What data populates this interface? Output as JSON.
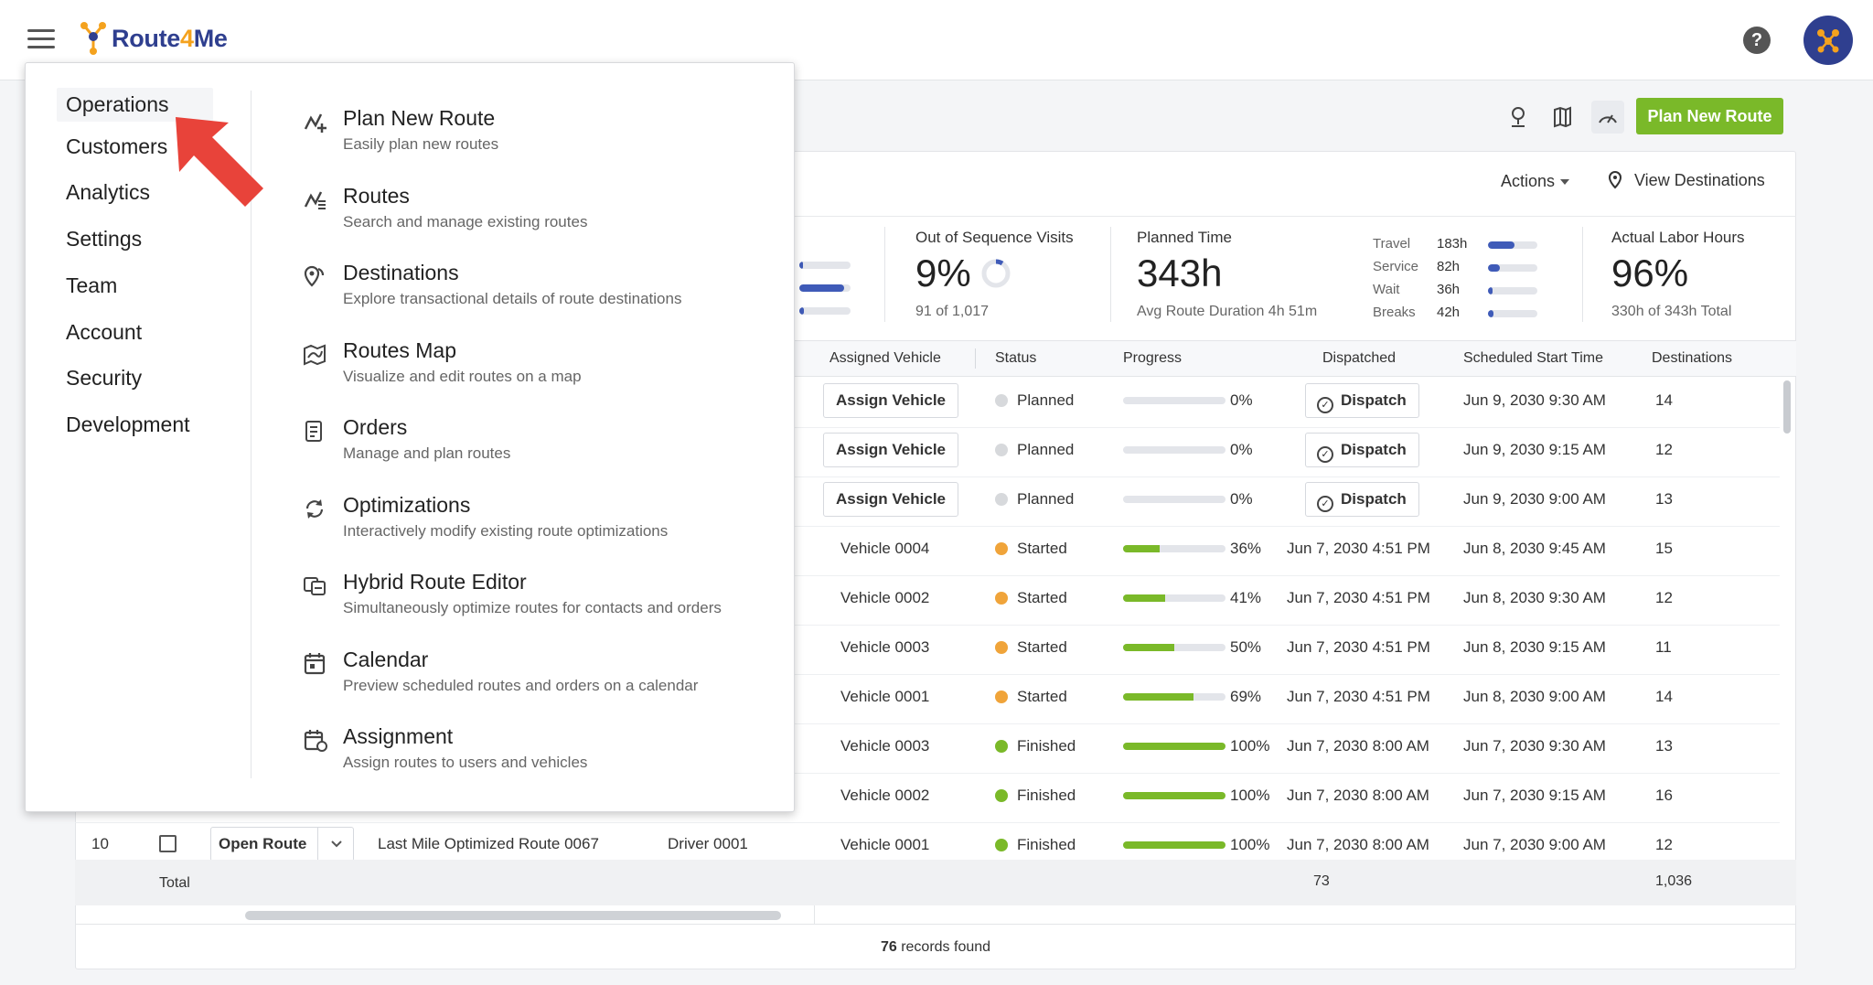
{
  "header": {
    "logo_text_a": "Route",
    "logo_text_b": "4",
    "logo_text_c": "Me",
    "help_label": "?"
  },
  "toolbar": {
    "plan_new_route": "Plan New Route",
    "actions": "Actions",
    "view_destinations": "View Destinations"
  },
  "stats": {
    "out_of_sequence": {
      "label": "Out of Sequence Visits",
      "value": "9%",
      "sub": "91 of 1,017",
      "ring_fraction": 0.09
    },
    "planned_time": {
      "label": "Planned Time",
      "value": "343h",
      "sub": "Avg Route Duration 4h 51m"
    },
    "breakdown": [
      {
        "label": "Travel",
        "value": "183h",
        "fraction": 0.53
      },
      {
        "label": "Service",
        "value": "82h",
        "fraction": 0.24
      },
      {
        "label": "Wait",
        "value": "36h",
        "fraction": 0.1
      },
      {
        "label": "Breaks",
        "value": "42h",
        "fraction": 0.12
      }
    ],
    "left_partial_fractions": [
      0.08,
      0.88,
      0.09
    ],
    "labor": {
      "label": "Actual Labor Hours",
      "value": "96%",
      "sub": "330h of 343h Total"
    }
  },
  "table": {
    "headers": {
      "vehicle": "Assigned Vehicle",
      "status": "Status",
      "progress": "Progress",
      "dispatched": "Dispatched",
      "start": "Scheduled Start Time",
      "destinations": "Destinations"
    },
    "rows": [
      {
        "vehicle": "Assign Vehicle",
        "vehicle_button": true,
        "status": "Planned",
        "status_color": "#d7d9dc",
        "progress": 0,
        "progress_label": "0%",
        "dispatched": "Dispatch",
        "dispatch_button": true,
        "start": "Jun 9, 2030 9:30 AM",
        "dest": "14"
      },
      {
        "vehicle": "Assign Vehicle",
        "vehicle_button": true,
        "status": "Planned",
        "status_color": "#d7d9dc",
        "progress": 0,
        "progress_label": "0%",
        "dispatched": "Dispatch",
        "dispatch_button": true,
        "start": "Jun 9, 2030 9:15 AM",
        "dest": "12"
      },
      {
        "vehicle": "Assign Vehicle",
        "vehicle_button": true,
        "status": "Planned",
        "status_color": "#d7d9dc",
        "progress": 0,
        "progress_label": "0%",
        "dispatched": "Dispatch",
        "dispatch_button": true,
        "start": "Jun 9, 2030 9:00 AM",
        "dest": "13"
      },
      {
        "vehicle": "Vehicle 0004",
        "status": "Started",
        "status_color": "#f0a43a",
        "progress": 36,
        "progress_label": "36%",
        "dispatched": "Jun 7, 2030 4:51 PM",
        "start": "Jun 8, 2030 9:45 AM",
        "dest": "15"
      },
      {
        "vehicle": "Vehicle 0002",
        "status": "Started",
        "status_color": "#f0a43a",
        "progress": 41,
        "progress_label": "41%",
        "dispatched": "Jun 7, 2030 4:51 PM",
        "start": "Jun 8, 2030 9:30 AM",
        "dest": "12"
      },
      {
        "vehicle": "Vehicle 0003",
        "status": "Started",
        "status_color": "#f0a43a",
        "progress": 50,
        "progress_label": "50%",
        "dispatched": "Jun 7, 2030 4:51 PM",
        "start": "Jun 8, 2030 9:15 AM",
        "dest": "11"
      },
      {
        "vehicle": "Vehicle 0001",
        "status": "Started",
        "status_color": "#f0a43a",
        "progress": 69,
        "progress_label": "69%",
        "dispatched": "Jun 7, 2030 4:51 PM",
        "start": "Jun 8, 2030 9:00 AM",
        "dest": "14"
      },
      {
        "vehicle": "Vehicle 0003",
        "status": "Finished",
        "status_color": "#7ab929",
        "progress": 100,
        "progress_label": "100%",
        "dispatched": "Jun 7, 2030 8:00 AM",
        "start": "Jun 7, 2030 9:30 AM",
        "dest": "13"
      },
      {
        "vehicle": "Vehicle 0002",
        "status": "Finished",
        "status_color": "#7ab929",
        "progress": 100,
        "progress_label": "100%",
        "dispatched": "Jun 7, 2030 8:00 AM",
        "start": "Jun 7, 2030 9:15 AM",
        "dest": "16"
      },
      {
        "vehicle": "Vehicle 0001",
        "status": "Finished",
        "status_color": "#7ab929",
        "progress": 100,
        "progress_label": "100%",
        "dispatched": "Jun 7, 2030 8:00 AM",
        "start": "Jun 7, 2030 9:00 AM",
        "dest": "12"
      }
    ],
    "last_row": {
      "num": "10",
      "open_route": "Open Route",
      "route_name": "Last Mile Optimized Route 0067",
      "driver": "Driver 0001"
    },
    "total": {
      "label": "Total",
      "dispatched_total": "73",
      "dest_total": "1,036"
    },
    "records_count": "76",
    "records_suffix": " records found"
  },
  "menu": {
    "categories": [
      "Operations",
      "Customers",
      "Analytics",
      "Settings",
      "Team",
      "Account",
      "Security",
      "Development"
    ],
    "selected": "Operations",
    "items": [
      {
        "title": "Plan New Route",
        "desc": "Easily plan new routes",
        "icon": "plan-route-icon"
      },
      {
        "title": "Routes",
        "desc": "Search and manage existing routes",
        "icon": "routes-icon"
      },
      {
        "title": "Destinations",
        "desc": "Explore transactional details of route destinations",
        "icon": "destinations-icon"
      },
      {
        "title": "Routes Map",
        "desc": "Visualize and edit routes on a map",
        "icon": "map-icon"
      },
      {
        "title": "Orders",
        "desc": "Manage and plan routes",
        "icon": "orders-icon"
      },
      {
        "title": "Optimizations",
        "desc": "Interactively modify existing route optimizations",
        "icon": "optimizations-icon"
      },
      {
        "title": "Hybrid Route Editor",
        "desc": "Simultaneously optimize routes for contacts and orders",
        "icon": "hybrid-editor-icon"
      },
      {
        "title": "Calendar",
        "desc": "Preview scheduled routes and orders on a calendar",
        "icon": "calendar-icon"
      },
      {
        "title": "Assignment",
        "desc": "Assign routes to users and vehicles",
        "icon": "assignment-icon"
      }
    ]
  },
  "colors": {
    "brand_blue": "#2f3f8f",
    "brand_orange": "#f4a21e",
    "accent_green": "#7ab929",
    "arrow_red": "#e8433a"
  }
}
